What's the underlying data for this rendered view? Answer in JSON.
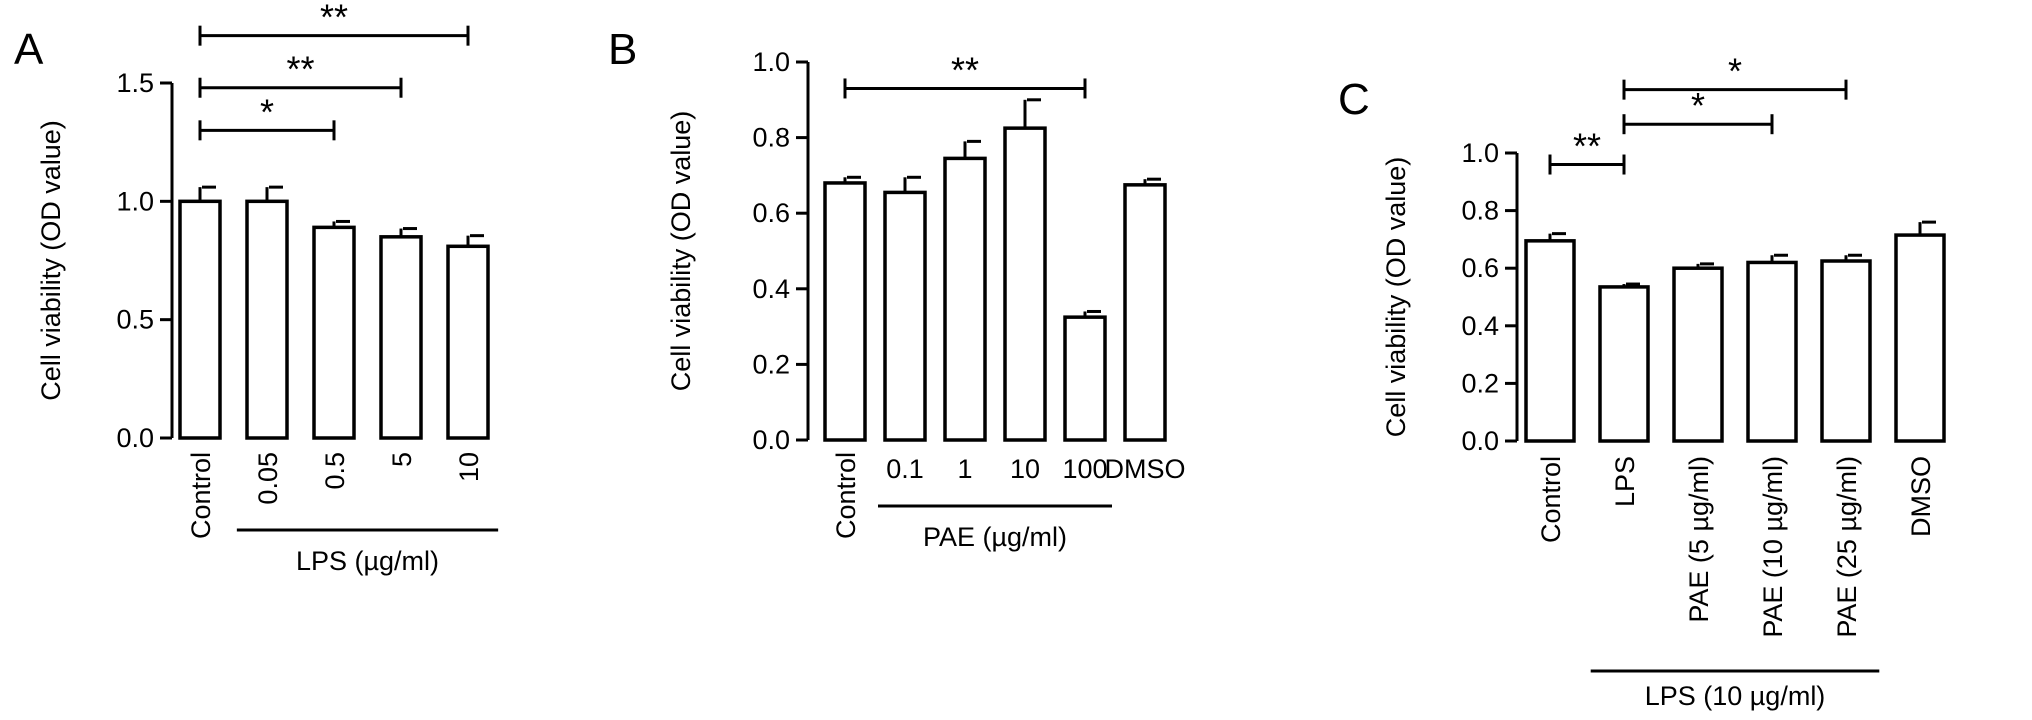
{
  "chart_data": [
    {
      "type": "bar",
      "panel_label": "A",
      "ylabel": "Cell viability (OD value)",
      "ylim": [
        0,
        1.5
      ],
      "yticks": [
        "0.0",
        "0.5",
        "1.0",
        "1.5"
      ],
      "categories": [
        "Control",
        "0.05",
        "0.5",
        "5",
        "10"
      ],
      "values": [
        1.0,
        1.0,
        0.89,
        0.85,
        0.81
      ],
      "errors": [
        0.06,
        0.06,
        0.025,
        0.035,
        0.045
      ],
      "group_label": {
        "text": "LPS (µg/ml)",
        "from": 1,
        "to": 4
      },
      "significance": [
        {
          "from": 0,
          "to": 2,
          "label": "*",
          "y": 1.3
        },
        {
          "from": 0,
          "to": 3,
          "label": "**",
          "y": 1.48
        },
        {
          "from": 0,
          "to": 4,
          "label": "**",
          "y": 1.7
        }
      ]
    },
    {
      "type": "bar",
      "panel_label": "B",
      "ylabel": "Cell viability (OD value)",
      "ylim": [
        0,
        1.0
      ],
      "yticks": [
        "0.0",
        "0.2",
        "0.4",
        "0.6",
        "0.8",
        "1.0"
      ],
      "categories": [
        "Control",
        "0.1",
        "1",
        "10",
        "100",
        "DMSO"
      ],
      "values": [
        0.68,
        0.655,
        0.745,
        0.825,
        0.325,
        0.675
      ],
      "errors": [
        0.015,
        0.04,
        0.045,
        0.075,
        0.015,
        0.015
      ],
      "group_label": {
        "text": "PAE (µg/ml)",
        "from": 1,
        "to": 4
      },
      "significance": [
        {
          "from": 0,
          "to": 4,
          "label": "**",
          "y": 0.93
        }
      ]
    },
    {
      "type": "bar",
      "panel_label": "C",
      "ylabel": "Cell viability (OD value)",
      "ylim": [
        0,
        1.0
      ],
      "yticks": [
        "0.0",
        "0.2",
        "0.4",
        "0.6",
        "0.8",
        "1.0"
      ],
      "categories": [
        "Control",
        "LPS",
        "PAE (5 µg/ml)",
        "PAE (10 µg/ml)",
        "PAE (25 µg/ml)",
        "DMSO"
      ],
      "values": [
        0.695,
        0.535,
        0.6,
        0.62,
        0.625,
        0.715
      ],
      "errors": [
        0.025,
        0.01,
        0.015,
        0.025,
        0.02,
        0.045
      ],
      "group_label": {
        "text": "LPS (10 µg/ml)",
        "from": 1,
        "to": 4
      },
      "significance": [
        {
          "from": 0,
          "to": 1,
          "label": "**",
          "y": 0.96
        },
        {
          "from": 1,
          "to": 3,
          "label": "*",
          "y": 1.1
        },
        {
          "from": 1,
          "to": 4,
          "label": "*",
          "y": 1.22
        }
      ]
    }
  ]
}
